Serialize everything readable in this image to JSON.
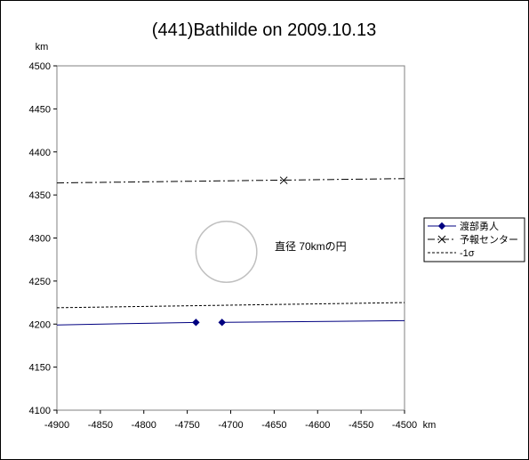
{
  "chart_data": {
    "type": "line",
    "title": "(441)Bathilde on 2009.10.13",
    "x_unit": "km",
    "y_unit": "km",
    "xlim": [
      -4900,
      -4500
    ],
    "ylim": [
      4100,
      4500
    ],
    "x_ticks": [
      -4900,
      -4850,
      -4800,
      -4750,
      -4700,
      -4650,
      -4600,
      -4550,
      -4500
    ],
    "y_ticks": [
      4100,
      4150,
      4200,
      4250,
      4300,
      4350,
      4400,
      4450,
      4500
    ],
    "grid": false,
    "legend_position": "right",
    "series": [
      {
        "name": "渡部勇人",
        "color": "#000080",
        "style": "solid",
        "marker": "diamond",
        "segments": [
          [
            [
              -4900,
              4199
            ],
            [
              -4740,
              4202
            ]
          ],
          [
            [
              -4710,
              4202
            ],
            [
              -4500,
              4204
            ]
          ]
        ],
        "markers": [
          [
            -4740,
            4202
          ],
          [
            -4710,
            4202
          ]
        ]
      },
      {
        "name": "予報センター",
        "color": "#000000",
        "style": "dashdot",
        "marker": "x",
        "segments": [
          [
            [
              -4900,
              4364
            ],
            [
              -4500,
              4369
            ]
          ]
        ],
        "markers": [
          [
            -4639,
            4367
          ]
        ]
      },
      {
        "name": "-1σ",
        "color": "#000000",
        "style": "dashed",
        "marker": "none",
        "segments": [
          [
            [
              -4900,
              4219
            ],
            [
              -4500,
              4225
            ]
          ]
        ],
        "markers": []
      }
    ],
    "annotation": {
      "text": "直径 70kmの円",
      "circle_center": [
        -4705,
        4284
      ],
      "circle_diameter_km": 70,
      "circle_color": "#c0c0c0"
    }
  }
}
